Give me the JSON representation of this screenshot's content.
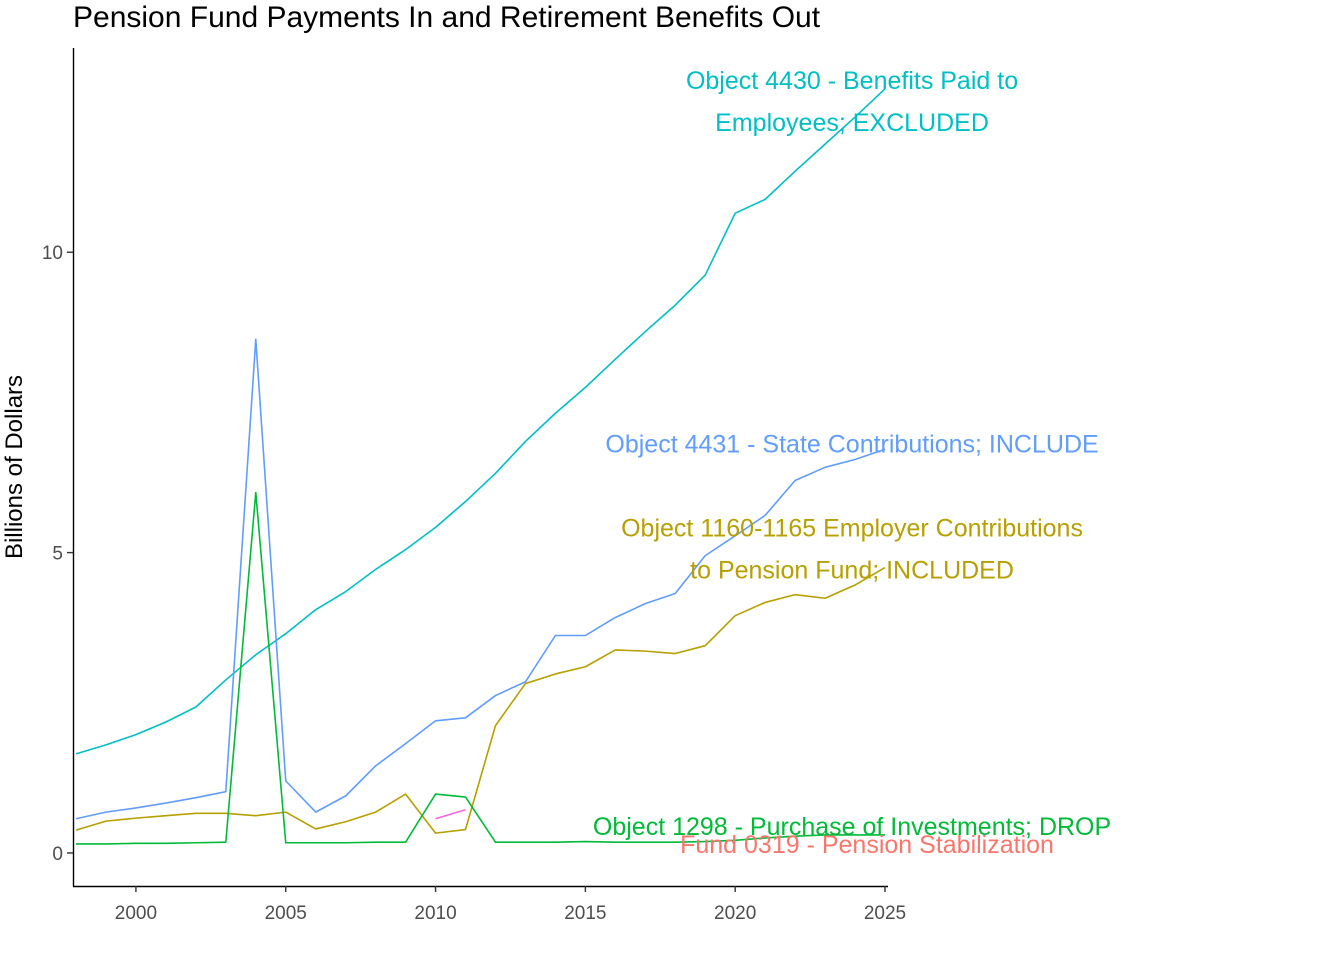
{
  "chart_data": {
    "type": "line",
    "title": "Pension Fund Payments In and Retirement Benefits Out",
    "xlabel": "",
    "ylabel": "Billions of Dollars",
    "xlim": [
      1997.9,
      2025.1
    ],
    "ylim": [
      -0.55,
      13.4
    ],
    "x_ticks": [
      2000,
      2005,
      2010,
      2015,
      2020,
      2025
    ],
    "x_tick_labels": [
      "2000",
      "2005",
      "2010",
      "2015",
      "2020",
      "2025"
    ],
    "y_ticks": [
      0,
      5,
      10
    ],
    "y_tick_labels": [
      "0",
      "5",
      "10"
    ],
    "grid": false,
    "legend": "none (direct labels at line ends)",
    "series": [
      {
        "key": "obj4430",
        "color": "#00BFC4",
        "label_lines": [
          "Object 4430 - Benefits Paid to",
          "Employees; EXCLUDED"
        ],
        "label_anchor": [
          2023.9,
          12.15
        ],
        "x": [
          1998,
          1999,
          2000,
          2001,
          2002,
          2003,
          2004,
          2005,
          2006,
          2007,
          2008,
          2009,
          2010,
          2011,
          2012,
          2013,
          2014,
          2015,
          2016,
          2017,
          2018,
          2019,
          2020,
          2021,
          2022,
          2023,
          2024,
          2025
        ],
        "values": [
          1.65,
          1.8,
          1.97,
          2.18,
          2.43,
          2.88,
          3.3,
          3.65,
          4.05,
          4.35,
          4.72,
          5.05,
          5.42,
          5.85,
          6.32,
          6.85,
          7.32,
          7.75,
          8.22,
          8.68,
          9.12,
          9.62,
          10.65,
          10.88,
          11.35,
          11.8,
          12.25,
          12.72
        ]
      },
      {
        "key": "obj4431",
        "color": "#619CFF",
        "label_lines": [
          "Object 4431 - State Contributions; INCLUDE"
        ],
        "label_anchor": [
          2023.9,
          6.8
        ],
        "x": [
          1998,
          1999,
          2000,
          2001,
          2002,
          2003,
          2004,
          2005,
          2006,
          2007,
          2008,
          2009,
          2010,
          2011,
          2012,
          2013,
          2014,
          2015,
          2016,
          2017,
          2018,
          2019,
          2020,
          2021,
          2022,
          2023,
          2024,
          2025
        ],
        "values": [
          0.57,
          0.68,
          0.75,
          0.83,
          0.92,
          1.02,
          8.55,
          1.2,
          0.68,
          0.95,
          1.45,
          1.82,
          2.2,
          2.25,
          2.62,
          2.85,
          3.62,
          3.62,
          3.92,
          4.15,
          4.32,
          4.95,
          5.28,
          5.62,
          6.2,
          6.42,
          6.55,
          6.72
        ]
      },
      {
        "key": "obj1160",
        "color": "#B79F00",
        "label_lines": [
          "Object 1160-1165 Employer Contributions",
          "to Pension Fund; INCLUDED"
        ],
        "label_anchor": [
          2023.9,
          4.7
        ],
        "x": [
          1998,
          1999,
          2000,
          2001,
          2002,
          2003,
          2004,
          2005,
          2006,
          2007,
          2008,
          2009,
          2010,
          2011,
          2012,
          2013,
          2014,
          2015,
          2016,
          2017,
          2018,
          2019,
          2020,
          2021,
          2022,
          2023,
          2024,
          2025
        ],
        "values": [
          0.38,
          0.53,
          0.58,
          0.62,
          0.66,
          0.66,
          0.62,
          0.68,
          0.4,
          0.52,
          0.68,
          0.98,
          0.33,
          0.39,
          2.12,
          2.82,
          2.98,
          3.1,
          3.38,
          3.36,
          3.32,
          3.45,
          3.95,
          4.17,
          4.3,
          4.24,
          4.46,
          4.75
        ]
      },
      {
        "key": "obj1298",
        "color": "#00BA38",
        "label_lines": [
          "Object 1298 - Purchase of Investments; DROP"
        ],
        "label_anchor": [
          2023.9,
          0.43
        ],
        "x": [
          1998,
          1999,
          2000,
          2001,
          2002,
          2003,
          2004,
          2005,
          2006,
          2007,
          2008,
          2009,
          2010,
          2011,
          2012,
          2013,
          2014,
          2015,
          2016,
          2017,
          2018,
          2019,
          2020,
          2021,
          2022,
          2023,
          2024,
          2025
        ],
        "values": [
          0.15,
          0.15,
          0.16,
          0.16,
          0.17,
          0.18,
          6.0,
          0.17,
          0.17,
          0.17,
          0.18,
          0.18,
          0.98,
          0.93,
          0.18,
          0.18,
          0.18,
          0.19,
          0.18,
          0.18,
          0.18,
          0.19,
          0.21,
          0.25,
          0.28,
          0.3,
          0.3,
          0.3
        ]
      },
      {
        "key": "fund0319",
        "color": "#F564E3",
        "label_color": "#F8766D",
        "label_lines": [
          "Fund 0319 - Pension Stabilization"
        ],
        "label_anchor": [
          2024.4,
          0.13
        ],
        "x": [
          2010,
          2011
        ],
        "values": [
          0.57,
          0.72
        ]
      }
    ]
  }
}
